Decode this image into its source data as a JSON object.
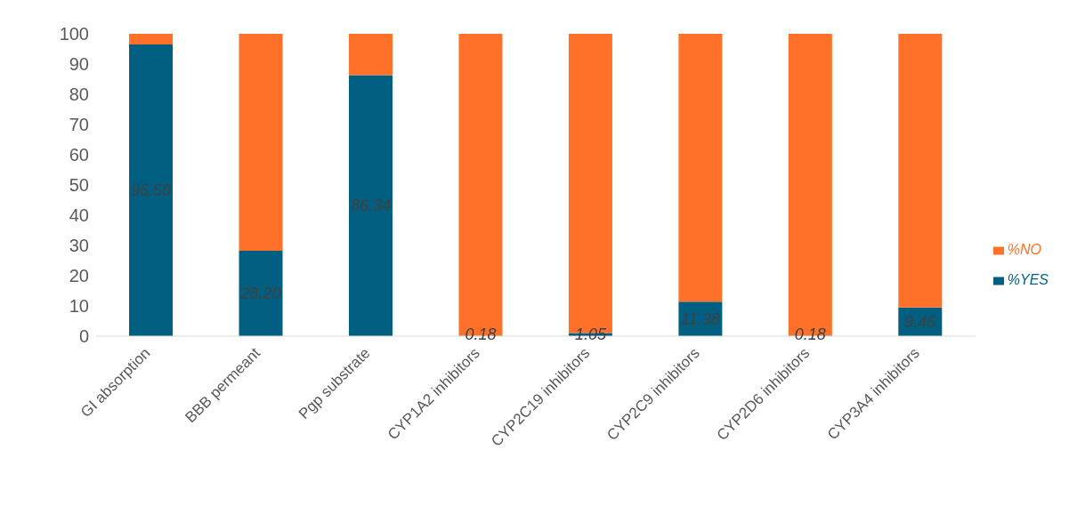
{
  "chart_data": {
    "type": "bar",
    "stacked": true,
    "categories": [
      "GI absorption",
      "BBB permeant",
      "Pgp substrate",
      "CYP1A2 inhibitors",
      "CYP2C19 inhibitors",
      "CYP2C9 inhibitors",
      "CYP2D6 inhibitors",
      "CYP3A4 inhibitors"
    ],
    "series": [
      {
        "name": "%YES",
        "color": "#005f80",
        "values": [
          96.5,
          28.2,
          86.34,
          0.18,
          1.05,
          11.38,
          0.18,
          9.46
        ],
        "value_labels": [
          "96.50",
          "28.20",
          "86.34",
          "0.18",
          "1.05",
          "11.38",
          "0.18",
          "9.46"
        ]
      },
      {
        "name": "%NO",
        "color": "#ff7128",
        "values": [
          3.5,
          71.8,
          13.66,
          99.82,
          98.95,
          88.62,
          99.82,
          90.54
        ]
      }
    ],
    "ylim": [
      0,
      100
    ],
    "yticks": [
      0,
      10,
      20,
      30,
      40,
      50,
      60,
      70,
      80,
      90,
      100
    ],
    "grid": false,
    "legend": "right"
  }
}
